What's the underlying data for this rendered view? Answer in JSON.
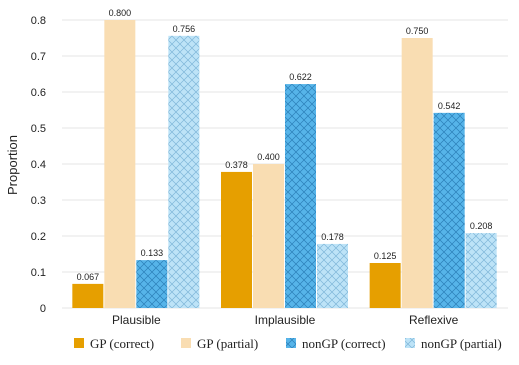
{
  "chart_data": {
    "type": "bar",
    "title": "",
    "xlabel": "",
    "ylabel": "Proportion",
    "ylim": [
      0,
      0.8
    ],
    "yticks": [
      "0",
      "0.1",
      "0.2",
      "0.3",
      "0.4",
      "0.5",
      "0.6",
      "0.7",
      "0.8"
    ],
    "grid": "horizontal",
    "legend_position": "bottom",
    "categories": [
      "Plausible",
      "Implausible",
      "Reflexive"
    ],
    "series": [
      {
        "name": "GP (correct)",
        "values": [
          0.067,
          0.378,
          0.125
        ],
        "labels": [
          "0.067",
          "0.378",
          "0.125"
        ],
        "color": "#E69F00",
        "hatch": "none"
      },
      {
        "name": "GP (partial)",
        "values": [
          0.8,
          0.4,
          0.75
        ],
        "labels": [
          "0.800",
          "0.400",
          "0.750"
        ],
        "color": "#F9DDB2",
        "hatch": "none"
      },
      {
        "name": "nonGP (correct)",
        "values": [
          0.133,
          0.622,
          0.542
        ],
        "labels": [
          "0.133",
          "0.622",
          "0.542"
        ],
        "color": "#56B4E9",
        "hatch": "cross"
      },
      {
        "name": "nonGP (partial)",
        "values": [
          0.756,
          0.178,
          0.208
        ],
        "labels": [
          "0.756",
          "0.178",
          "0.208"
        ],
        "color": "#BDE3F7",
        "hatch": "cross"
      }
    ]
  }
}
